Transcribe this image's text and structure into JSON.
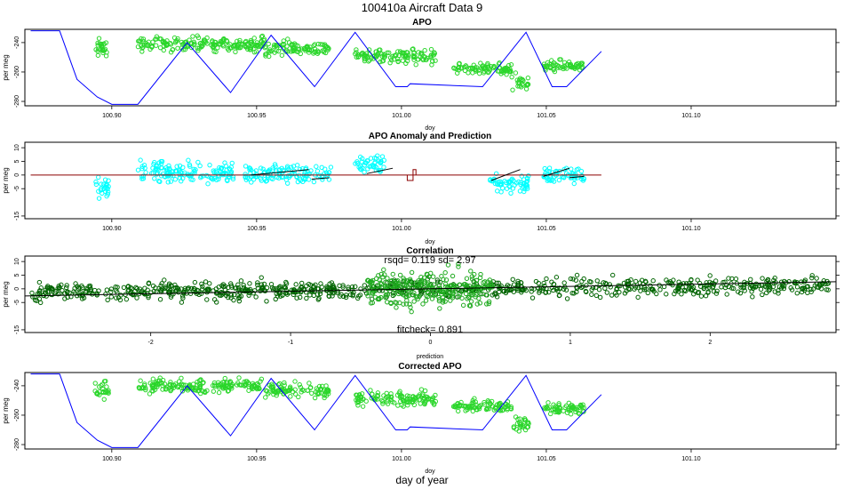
{
  "figure": {
    "title": "100410a   Aircraft Data 9",
    "bottom_label": "day of year"
  },
  "chart_data": [
    {
      "type": "scatter",
      "title": "APO",
      "xlabel": "doy",
      "ylabel": "per meg",
      "xlim": [
        100.87,
        101.15
      ],
      "ylim": [
        -283,
        -231
      ],
      "xticks": [
        100.9,
        100.95,
        101.0,
        101.05,
        101.1
      ],
      "xtick_labels": [
        "100.90",
        "100.95",
        "101.00",
        "101.05",
        "101.10"
      ],
      "yticks": [
        -240,
        -260,
        -280
      ],
      "ytick_labels": [
        "-240",
        "-260",
        "-280"
      ],
      "points_color": "#2bd62b",
      "line_color": "#0000ff",
      "clusters": [
        {
          "x": [
            100.894,
            100.899
          ],
          "center": -244,
          "spread": 5
        },
        {
          "x": [
            100.909,
            100.953
          ],
          "center": -241,
          "spread": 4
        },
        {
          "x": [
            100.953,
            100.975
          ],
          "center": -244,
          "spread": 4
        },
        {
          "x": [
            100.984,
            101.012
          ],
          "center": -249,
          "spread": 4
        },
        {
          "x": [
            101.018,
            101.038
          ],
          "center": -258,
          "spread": 3
        },
        {
          "x": [
            101.038,
            101.044
          ],
          "center": -268,
          "spread": 5
        },
        {
          "x": [
            101.049,
            101.063
          ],
          "center": -256,
          "spread": 3
        }
      ],
      "model_line": {
        "x": [
          100.872,
          100.882,
          100.888,
          100.895,
          100.9,
          100.909,
          100.926,
          100.941,
          100.955,
          100.97,
          100.984,
          100.998,
          101.002,
          101.003,
          101.028,
          101.043,
          101.052,
          101.057,
          101.069
        ],
        "y": [
          -232,
          -232,
          -265,
          -277,
          -282,
          -282,
          -240,
          -274,
          -235,
          -270,
          -233,
          -270,
          -270,
          -268,
          -270,
          -233,
          -270,
          -270,
          -246
        ]
      }
    },
    {
      "type": "scatter",
      "title": "APO Anomaly and Prediction",
      "xlabel": "doy",
      "ylabel": "per meg",
      "xlim": [
        100.87,
        101.15
      ],
      "ylim": [
        -16,
        12
      ],
      "xticks": [
        100.9,
        100.95,
        101.0,
        101.05,
        101.1
      ],
      "xtick_labels": [
        "100.90",
        "100.95",
        "101.00",
        "101.05",
        "101.10"
      ],
      "yticks": [
        10,
        5,
        0,
        -5,
        -15
      ],
      "ytick_labels": [
        "10",
        "5",
        "0",
        "-5",
        "-15"
      ],
      "points_color": "#00ffff",
      "zero_line_color": "#8b0000",
      "clusters": [
        {
          "x": [
            100.894,
            100.899
          ],
          "center": -4,
          "spread": 4
        },
        {
          "x": [
            100.909,
            100.942
          ],
          "center": 1,
          "spread": 3
        },
        {
          "x": [
            100.946,
            100.976
          ],
          "center": 0.5,
          "spread": 2.5
        },
        {
          "x": [
            100.984,
            100.994
          ],
          "center": 4,
          "spread": 3
        },
        {
          "x": [
            101.03,
            101.044
          ],
          "center": -3,
          "spread": 3
        },
        {
          "x": [
            101.049,
            101.063
          ],
          "center": 0,
          "spread": 2.5
        }
      ],
      "prediction_segments": [
        {
          "x": [
            100.948,
            100.968
          ],
          "y": [
            0,
            2
          ]
        },
        {
          "x": [
            100.969,
            100.975
          ],
          "y": [
            -1.5,
            -1
          ]
        },
        {
          "x": [
            100.988,
            100.997
          ],
          "y": [
            0.5,
            2.5
          ]
        },
        {
          "x": [
            101.031,
            101.041
          ],
          "y": [
            -2,
            2
          ]
        },
        {
          "x": [
            101.049,
            101.058
          ],
          "y": [
            -0.5,
            2.5
          ]
        },
        {
          "x": [
            101.058,
            101.063
          ],
          "y": [
            -1,
            -0.5
          ]
        }
      ]
    },
    {
      "type": "scatter",
      "title": "Correlation",
      "xlabel": "prediction",
      "ylabel": "per meg",
      "xlim": [
        -2.9,
        2.9
      ],
      "ylim": [
        -16,
        12
      ],
      "xticks": [
        -2,
        -1,
        0,
        1,
        2
      ],
      "xtick_labels": [
        "-2",
        "-1",
        "0",
        "1",
        "2"
      ],
      "yticks": [
        10,
        5,
        0,
        -5,
        -15
      ],
      "ytick_labels": [
        "10",
        "5",
        "0",
        "-5",
        "-15"
      ],
      "points_color": "#006400",
      "fit_line": {
        "x": [
          -2.9,
          2.9
        ],
        "y": [
          -2.6,
          2.6
        ]
      },
      "annotations": [
        "rsqd= 0.119 sd= 2.97",
        "fitcheck= 0.891"
      ]
    },
    {
      "type": "scatter",
      "title": "Corrected APO",
      "xlabel": "doy",
      "ylabel": "per meg",
      "xlim": [
        100.87,
        101.15
      ],
      "ylim": [
        -283,
        -231
      ],
      "xticks": [
        100.9,
        100.95,
        101.0,
        101.05,
        101.1
      ],
      "xtick_labels": [
        "100.90",
        "100.95",
        "101.00",
        "101.05",
        "101.10"
      ],
      "yticks": [
        -240,
        -260,
        -280
      ],
      "ytick_labels": [
        "-240",
        "-260",
        "-280"
      ],
      "points_color": "#2bd62b",
      "line_color": "#0000ff",
      "clusters": [
        {
          "x": [
            100.894,
            100.899
          ],
          "center": -243,
          "spread": 5
        },
        {
          "x": [
            100.909,
            100.953
          ],
          "center": -240,
          "spread": 4
        },
        {
          "x": [
            100.953,
            100.975
          ],
          "center": -243,
          "spread": 4
        },
        {
          "x": [
            100.984,
            101.012
          ],
          "center": -249,
          "spread": 4
        },
        {
          "x": [
            101.018,
            101.038
          ],
          "center": -254,
          "spread": 3
        },
        {
          "x": [
            101.038,
            101.044
          ],
          "center": -266,
          "spread": 5
        },
        {
          "x": [
            101.049,
            101.063
          ],
          "center": -255,
          "spread": 3
        }
      ],
      "model_line": {
        "x": [
          100.872,
          100.882,
          100.888,
          100.895,
          100.9,
          100.909,
          100.926,
          100.941,
          100.955,
          100.97,
          100.984,
          100.998,
          101.002,
          101.003,
          101.028,
          101.043,
          101.052,
          101.057,
          101.069
        ],
        "y": [
          -232,
          -232,
          -265,
          -277,
          -282,
          -282,
          -240,
          -274,
          -235,
          -270,
          -233,
          -270,
          -270,
          -268,
          -270,
          -233,
          -270,
          -270,
          -246
        ]
      }
    }
  ]
}
